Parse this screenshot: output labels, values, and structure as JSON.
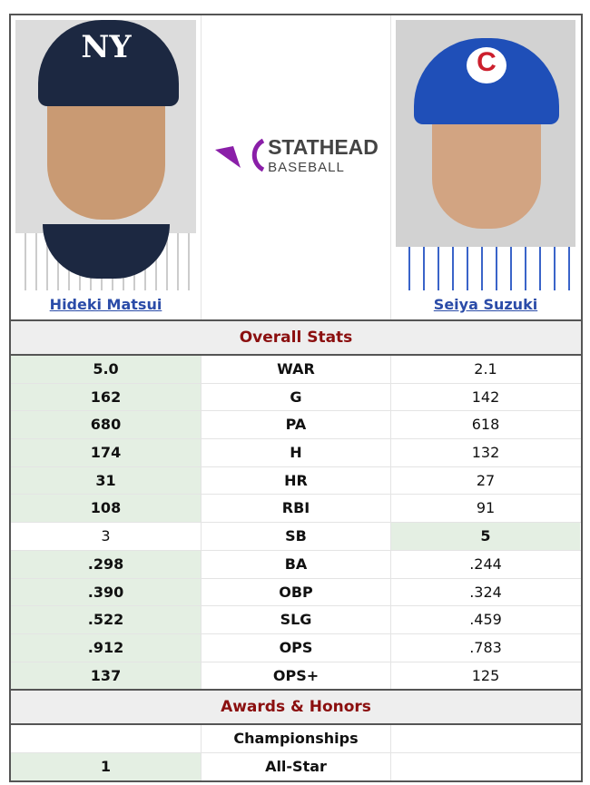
{
  "players": [
    {
      "name": "Hideki Matsui",
      "cap_logo": "NY",
      "cap_color": "#1c2841"
    },
    {
      "name": "Seiya Suzuki",
      "cap_logo": "C",
      "cap_color": "#1f4fb8"
    }
  ],
  "logo": {
    "top": "STATHEAD",
    "bottom": "BASEBALL",
    "accent": "#8a1fa8"
  },
  "sections": {
    "overall": "Overall Stats",
    "awards": "Awards & Honors"
  },
  "stats": [
    {
      "label": "WAR",
      "left": "5.0",
      "right": "2.1",
      "winner": "left"
    },
    {
      "label": "G",
      "left": "162",
      "right": "142",
      "winner": "left"
    },
    {
      "label": "PA",
      "left": "680",
      "right": "618",
      "winner": "left"
    },
    {
      "label": "H",
      "left": "174",
      "right": "132",
      "winner": "left"
    },
    {
      "label": "HR",
      "left": "31",
      "right": "27",
      "winner": "left"
    },
    {
      "label": "RBI",
      "left": "108",
      "right": "91",
      "winner": "left"
    },
    {
      "label": "SB",
      "left": "3",
      "right": "5",
      "winner": "right"
    },
    {
      "label": "BA",
      "left": ".298",
      "right": ".244",
      "winner": "left"
    },
    {
      "label": "OBP",
      "left": ".390",
      "right": ".324",
      "winner": "left"
    },
    {
      "label": "SLG",
      "left": ".522",
      "right": ".459",
      "winner": "left"
    },
    {
      "label": "OPS",
      "left": ".912",
      "right": ".783",
      "winner": "left"
    },
    {
      "label": "OPS+",
      "left": "137",
      "right": "125",
      "winner": "left"
    }
  ],
  "awards": [
    {
      "label": "Championships",
      "left": "",
      "right": "",
      "winner": ""
    },
    {
      "label": "All-Star",
      "left": "1",
      "right": "",
      "winner": "left"
    }
  ]
}
